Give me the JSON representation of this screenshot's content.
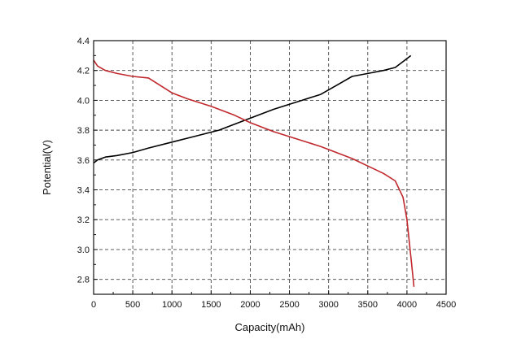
{
  "chart_data": {
    "type": "line",
    "xlabel": "Capacity(mAh)",
    "ylabel": "Potential(V)",
    "xlim": [
      0,
      4500
    ],
    "ylim": [
      2.7,
      4.4
    ],
    "x_ticks": [
      0,
      500,
      1000,
      1500,
      2000,
      2500,
      3000,
      3500,
      4000,
      4500
    ],
    "y_ticks": [
      2.8,
      3.0,
      3.2,
      3.4,
      3.6,
      3.8,
      4.0,
      4.2,
      4.4
    ],
    "x_tick_labels": [
      "0",
      "500",
      "1000",
      "1500",
      "2000",
      "2500",
      "3000",
      "3500",
      "4000",
      "4500"
    ],
    "y_tick_labels": [
      "2.8",
      "3.0",
      "3.2",
      "3.4",
      "3.6",
      "3.8",
      "4.0",
      "4.2",
      "4.4"
    ],
    "grid": true,
    "grid_style": "dashed",
    "series": [
      {
        "color": "#000000",
        "points": [
          [
            0,
            3.58
          ],
          [
            50,
            3.6
          ],
          [
            150,
            3.62
          ],
          [
            300,
            3.63
          ],
          [
            500,
            3.65
          ],
          [
            700,
            3.68
          ],
          [
            1000,
            3.72
          ],
          [
            1300,
            3.76
          ],
          [
            1600,
            3.8
          ],
          [
            1800,
            3.84
          ],
          [
            2000,
            3.88
          ],
          [
            2300,
            3.94
          ],
          [
            2600,
            3.99
          ],
          [
            2900,
            4.04
          ],
          [
            3100,
            4.1
          ],
          [
            3300,
            4.16
          ],
          [
            3500,
            4.18
          ],
          [
            3700,
            4.2
          ],
          [
            3850,
            4.22
          ],
          [
            3950,
            4.26
          ],
          [
            4050,
            4.3
          ]
        ]
      },
      {
        "color": "#c0282d",
        "points": [
          [
            0,
            4.27
          ],
          [
            50,
            4.23
          ],
          [
            150,
            4.2
          ],
          [
            300,
            4.18
          ],
          [
            500,
            4.16
          ],
          [
            700,
            4.15
          ],
          [
            850,
            4.1
          ],
          [
            1000,
            4.05
          ],
          [
            1200,
            4.01
          ],
          [
            1500,
            3.96
          ],
          [
            1800,
            3.9
          ],
          [
            2000,
            3.85
          ],
          [
            2300,
            3.79
          ],
          [
            2600,
            3.74
          ],
          [
            2900,
            3.69
          ],
          [
            3100,
            3.65
          ],
          [
            3300,
            3.61
          ],
          [
            3500,
            3.56
          ],
          [
            3700,
            3.51
          ],
          [
            3850,
            3.46
          ],
          [
            3950,
            3.35
          ],
          [
            4000,
            3.2
          ],
          [
            4030,
            3.05
          ],
          [
            4060,
            2.9
          ],
          [
            4090,
            2.75
          ]
        ]
      }
    ]
  }
}
